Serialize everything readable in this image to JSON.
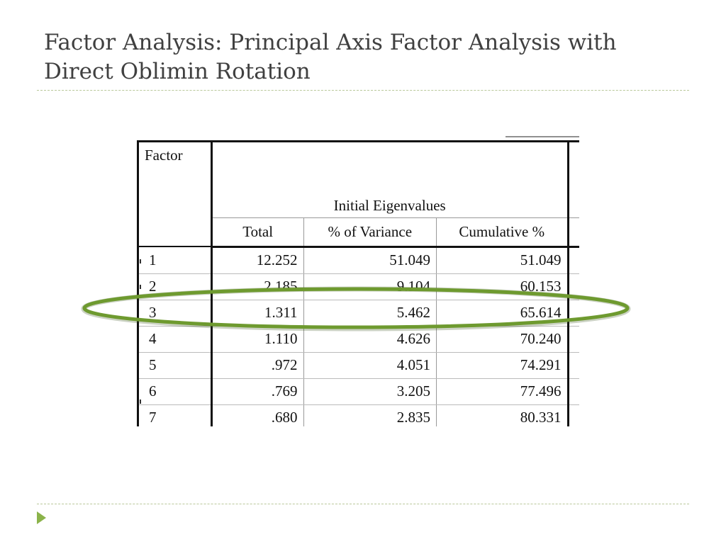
{
  "slide": {
    "title_line1": "Factor Analysis: Principal Axis Factor Analysis with",
    "title_line2": "Direct Oblimin Rotation"
  },
  "table": {
    "factor_header": "Factor",
    "group_header": "Initial Eigenvalues",
    "columns": [
      "Total",
      "% of Variance",
      "Cumulative %"
    ],
    "rows": [
      {
        "factor": "1",
        "total": "12.252",
        "variance": "51.049",
        "cumulative": "51.049"
      },
      {
        "factor": "2",
        "total": "2.185",
        "variance": "9.104",
        "cumulative": "60.153"
      },
      {
        "factor": "3",
        "total": "1.311",
        "variance": "5.462",
        "cumulative": "65.614"
      },
      {
        "factor": "4",
        "total": "1.110",
        "variance": "4.626",
        "cumulative": "70.240"
      },
      {
        "factor": "5",
        "total": ".972",
        "variance": "4.051",
        "cumulative": "74.291"
      },
      {
        "factor": "6",
        "total": ".769",
        "variance": "3.205",
        "cumulative": "77.496"
      },
      {
        "factor": "7",
        "total": ".680",
        "variance": "2.835",
        "cumulative": "80.331"
      }
    ]
  },
  "highlight": {
    "row_factor": "3",
    "color": "#6e9a2f"
  },
  "theme": {
    "accent": "#8bb34a",
    "rule_color": "#b9c89a"
  }
}
